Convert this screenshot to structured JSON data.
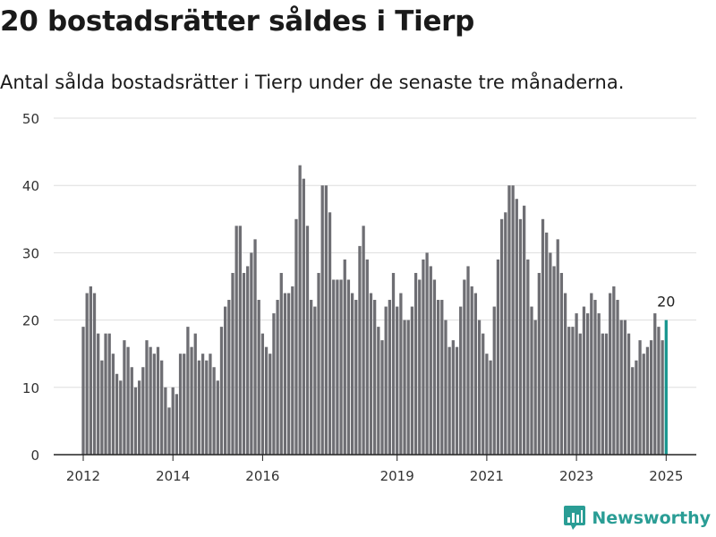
{
  "title": "20 bostadsrätter såldes i Tierp",
  "subtitle": "Antal sålda bostadsrätter i Tierp under de senaste tre månaderna.",
  "brand": {
    "name": "Newsworthy",
    "icon": "chart-logo-icon",
    "color": "#2a9d95"
  },
  "colors": {
    "bar": "#6e6e73",
    "highlight": "#17968f",
    "grid": "#dddddd",
    "axis": "#222222",
    "text": "#333333"
  },
  "chart_data": {
    "type": "bar",
    "title": "20 bostadsrätter såldes i Tierp",
    "xlabel": "",
    "ylabel": "",
    "ylim": [
      0,
      50
    ],
    "yticks": [
      0,
      10,
      20,
      30,
      40,
      50
    ],
    "xticks": [
      "2012",
      "2014",
      "2016",
      "2019",
      "2021",
      "2023",
      "2025"
    ],
    "grid": true,
    "start": "2012-01",
    "frequency": "monthly",
    "highlight_last": true,
    "last_label": "20",
    "categories": [
      "2012-01",
      "2012-02",
      "2012-03",
      "2012-04",
      "2012-05",
      "2012-06",
      "2012-07",
      "2012-08",
      "2012-09",
      "2012-10",
      "2012-11",
      "2012-12",
      "2013-01",
      "2013-02",
      "2013-03",
      "2013-04",
      "2013-05",
      "2013-06",
      "2013-07",
      "2013-08",
      "2013-09",
      "2013-10",
      "2013-11",
      "2013-12",
      "2014-01",
      "2014-02",
      "2014-03",
      "2014-04",
      "2014-05",
      "2014-06",
      "2014-07",
      "2014-08",
      "2014-09",
      "2014-10",
      "2014-11",
      "2014-12",
      "2015-01",
      "2015-02",
      "2015-03",
      "2015-04",
      "2015-05",
      "2015-06",
      "2015-07",
      "2015-08",
      "2015-09",
      "2015-10",
      "2015-11",
      "2015-12",
      "2016-01",
      "2016-02",
      "2016-03",
      "2016-04",
      "2016-05",
      "2016-06",
      "2016-07",
      "2016-08",
      "2016-09",
      "2016-10",
      "2016-11",
      "2016-12",
      "2017-01",
      "2017-02",
      "2017-03",
      "2017-04",
      "2017-05",
      "2017-06",
      "2017-07",
      "2017-08",
      "2017-09",
      "2017-10",
      "2017-11",
      "2017-12",
      "2018-01",
      "2018-02",
      "2018-03",
      "2018-04",
      "2018-05",
      "2018-06",
      "2018-07",
      "2018-08",
      "2018-09",
      "2018-10",
      "2018-11",
      "2018-12",
      "2019-01",
      "2019-02",
      "2019-03",
      "2019-04",
      "2019-05",
      "2019-06",
      "2019-07",
      "2019-08",
      "2019-09",
      "2019-10",
      "2019-11",
      "2019-12",
      "2020-01",
      "2020-02",
      "2020-03",
      "2020-04",
      "2020-05",
      "2020-06",
      "2020-07",
      "2020-08",
      "2020-09",
      "2020-10",
      "2020-11",
      "2020-12",
      "2021-01",
      "2021-02",
      "2021-03",
      "2021-04",
      "2021-05",
      "2021-06",
      "2021-07",
      "2021-08",
      "2021-09",
      "2021-10",
      "2021-11",
      "2021-12",
      "2022-01",
      "2022-02",
      "2022-03",
      "2022-04",
      "2022-05",
      "2022-06",
      "2022-07",
      "2022-08",
      "2022-09",
      "2022-10",
      "2022-11",
      "2022-12",
      "2023-01",
      "2023-02",
      "2023-03",
      "2023-04",
      "2023-05",
      "2023-06",
      "2023-07",
      "2023-08",
      "2023-09",
      "2023-10",
      "2023-11",
      "2023-12",
      "2024-01",
      "2024-02",
      "2024-03",
      "2024-04",
      "2024-05",
      "2024-06",
      "2024-07",
      "2024-08",
      "2024-09",
      "2024-10",
      "2024-11",
      "2024-12",
      "2025-01"
    ],
    "values": [
      19,
      24,
      25,
      24,
      18,
      14,
      18,
      18,
      15,
      12,
      11,
      17,
      16,
      13,
      10,
      11,
      13,
      17,
      16,
      15,
      16,
      14,
      10,
      7,
      10,
      9,
      15,
      15,
      19,
      16,
      18,
      14,
      15,
      14,
      15,
      13,
      11,
      19,
      22,
      23,
      27,
      34,
      34,
      27,
      28,
      30,
      32,
      23,
      18,
      16,
      15,
      21,
      23,
      27,
      24,
      24,
      25,
      35,
      43,
      41,
      34,
      23,
      22,
      27,
      40,
      40,
      36,
      26,
      26,
      26,
      29,
      26,
      24,
      23,
      31,
      34,
      29,
      24,
      23,
      19,
      17,
      22,
      23,
      27,
      22,
      24,
      20,
      20,
      22,
      27,
      26,
      29,
      30,
      28,
      26,
      23,
      23,
      20,
      16,
      17,
      16,
      22,
      26,
      28,
      25,
      24,
      20,
      18,
      15,
      14,
      22,
      29,
      35,
      36,
      40,
      40,
      38,
      35,
      37,
      29,
      22,
      20,
      27,
      35,
      33,
      30,
      28,
      32,
      27,
      24,
      19,
      19,
      21,
      18,
      22,
      21,
      24,
      23,
      21,
      18,
      18,
      24,
      25,
      23,
      20,
      20,
      18,
      13,
      14,
      17,
      15,
      16,
      17,
      21,
      19,
      17,
      20
    ]
  }
}
